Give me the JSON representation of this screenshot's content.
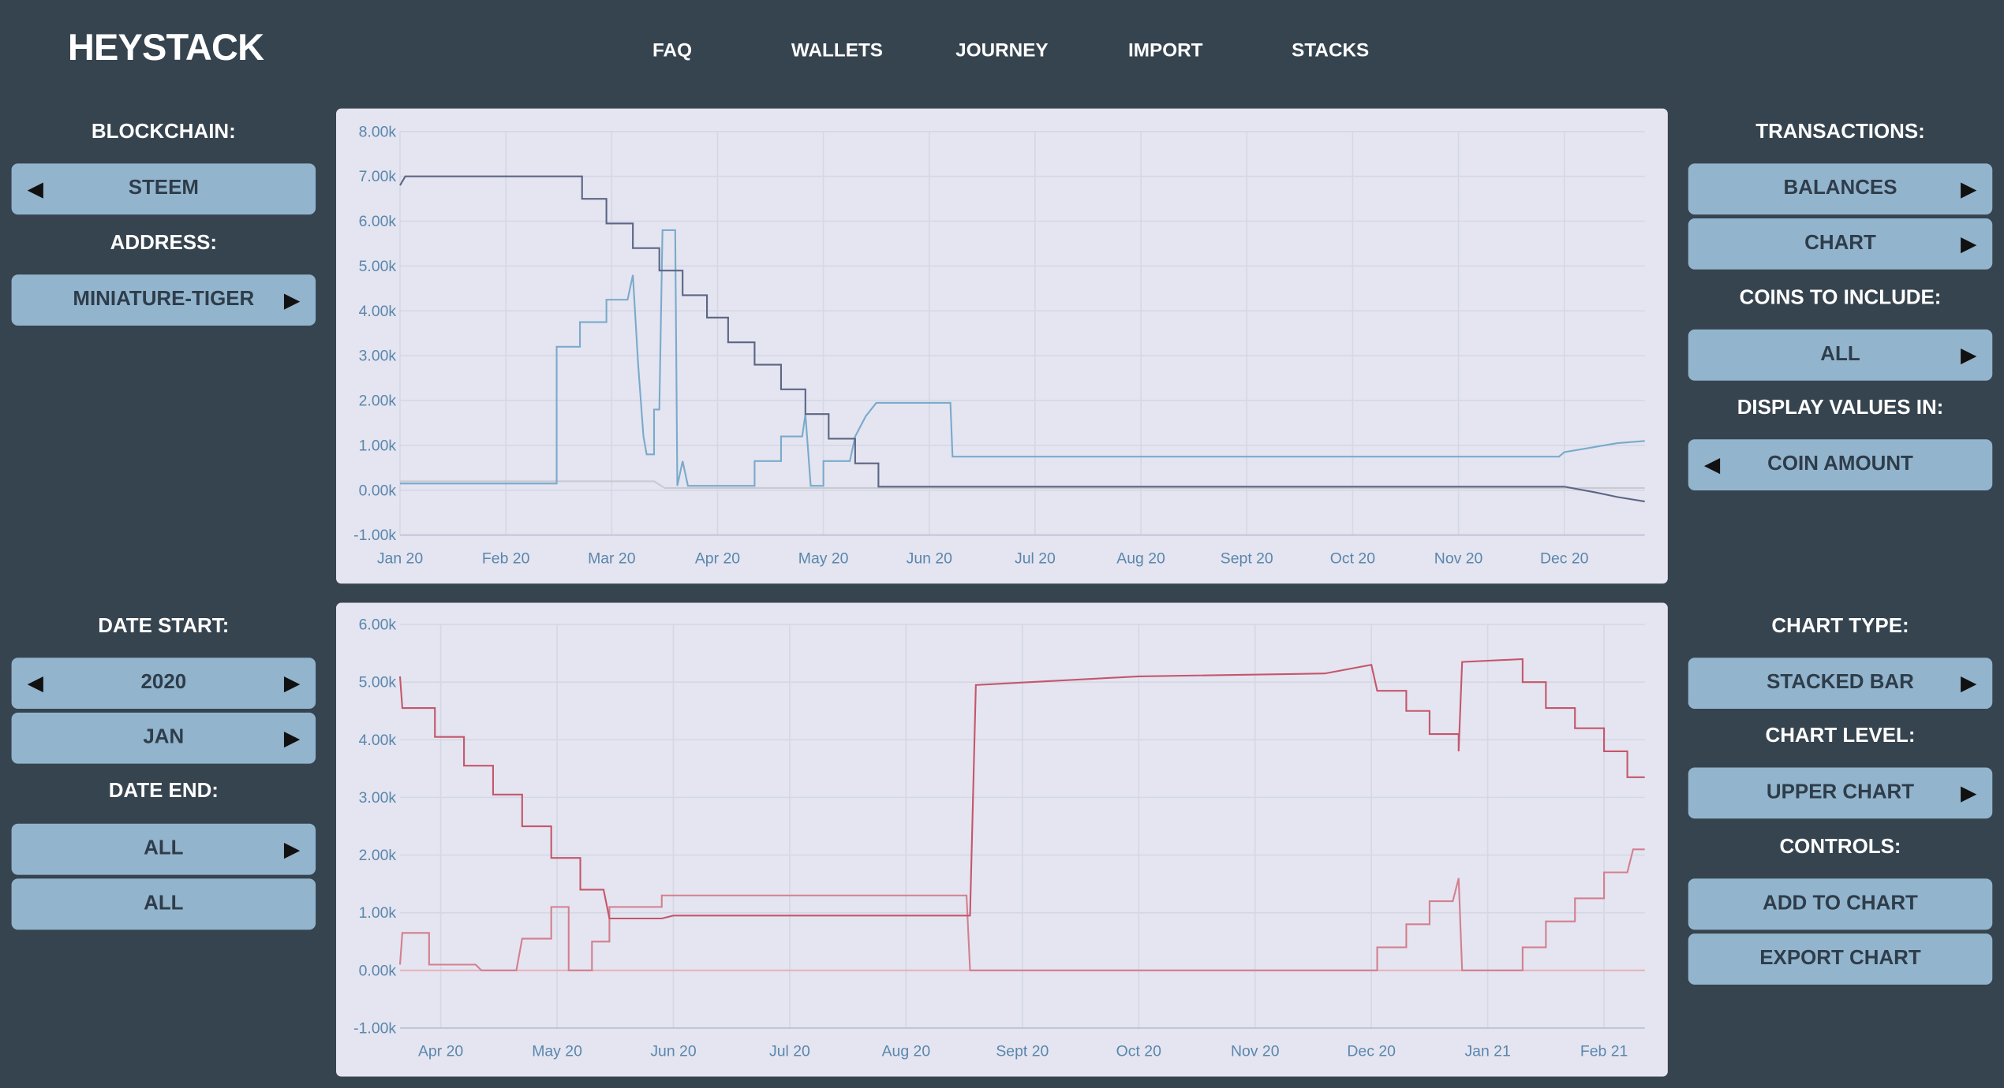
{
  "header": {
    "logo": "HEYSTACK",
    "nav": [
      "FAQ",
      "WALLETS",
      "JOURNEY",
      "IMPORT",
      "STACKS"
    ]
  },
  "left_panel": [
    {
      "label": "BLOCKCHAIN:"
    },
    {
      "button": "STEEM",
      "arrow": "left"
    },
    {
      "label": "ADDRESS:"
    },
    {
      "button": "MINIATURE-TIGER",
      "arrow": "right"
    },
    {
      "label": "DATE START:"
    },
    {
      "button": "2020",
      "arrow": "both"
    },
    {
      "button": "JAN",
      "arrow": "right"
    },
    {
      "label": "DATE END:"
    },
    {
      "button": "ALL",
      "arrow": "right"
    },
    {
      "button": "ALL",
      "arrow": "none"
    }
  ],
  "right_panel": [
    {
      "label": "TRANSACTIONS:"
    },
    {
      "button": "BALANCES",
      "arrow": "right"
    },
    {
      "button": "CHART",
      "arrow": "right"
    },
    {
      "label": "COINS TO INCLUDE:"
    },
    {
      "button": "ALL",
      "arrow": "right"
    },
    {
      "label": "DISPLAY VALUES IN:"
    },
    {
      "button": "COIN AMOUNT",
      "arrow": "left"
    },
    {
      "label": "CHART TYPE:"
    },
    {
      "button": "STACKED BAR",
      "arrow": "right"
    },
    {
      "label": "CHART LEVEL:"
    },
    {
      "button": "UPPER CHART",
      "arrow": "right"
    },
    {
      "label": "CONTROLS:"
    },
    {
      "button": "ADD TO CHART",
      "arrow": "none"
    },
    {
      "button": "EXPORT CHART",
      "arrow": "none"
    }
  ],
  "chart_data": [
    {
      "type": "line",
      "grid": true,
      "xlim": [
        0,
        11.76
      ],
      "xticks": [
        {
          "value": 0,
          "label": "Jan 20"
        },
        {
          "value": 1,
          "label": "Feb 20"
        },
        {
          "value": 2,
          "label": "Mar 20"
        },
        {
          "value": 3,
          "label": "Apr 20"
        },
        {
          "value": 4,
          "label": "May 20"
        },
        {
          "value": 5,
          "label": "Jun 20"
        },
        {
          "value": 6,
          "label": "Jul 20"
        },
        {
          "value": 7,
          "label": "Aug 20"
        },
        {
          "value": 8,
          "label": "Sept 20"
        },
        {
          "value": 9,
          "label": "Oct 20"
        },
        {
          "value": 10,
          "label": "Nov 20"
        },
        {
          "value": 11,
          "label": "Dec 20"
        }
      ],
      "ylim": [
        -1000,
        8000
      ],
      "yticks": [
        {
          "value": -1000,
          "label": "-1.00k"
        },
        {
          "value": 0,
          "label": "0.00k"
        },
        {
          "value": 1000,
          "label": "1.00k"
        },
        {
          "value": 2000,
          "label": "2.00k"
        },
        {
          "value": 3000,
          "label": "3.00k"
        },
        {
          "value": 4000,
          "label": "4.00k"
        },
        {
          "value": 5000,
          "label": "5.00k"
        },
        {
          "value": 6000,
          "label": "6.00k"
        },
        {
          "value": 7000,
          "label": "7.00k"
        },
        {
          "value": 8000,
          "label": "8.00k"
        }
      ],
      "series": [
        {
          "color": "#c9c9d2",
          "x": [
            0,
            2.4,
            2.5,
            11.76
          ],
          "values": [
            200,
            200,
            50,
            50
          ]
        },
        {
          "color": "#7aaacb",
          "x": [
            0,
            1.48,
            1.48,
            1.7,
            1.7,
            1.95,
            1.95,
            2.15,
            2.2,
            2.25,
            2.3,
            2.33,
            2.4,
            2.4,
            2.45,
            2.48,
            2.6,
            2.62,
            2.67,
            2.72,
            3.35,
            3.35,
            3.6,
            3.6,
            3.8,
            3.83,
            3.88,
            4.0,
            4.0,
            4.25,
            4.3,
            4.4,
            4.5,
            5.2,
            5.22,
            10.95,
            11.0,
            11.25,
            11.5,
            11.76
          ],
          "values": [
            150,
            150,
            3200,
            3200,
            3750,
            3750,
            4250,
            4250,
            4800,
            2800,
            1200,
            800,
            800,
            1800,
            1800,
            5800,
            5800,
            100,
            650,
            100,
            100,
            650,
            650,
            1200,
            1200,
            1700,
            100,
            100,
            650,
            650,
            1200,
            1650,
            1950,
            1950,
            750,
            750,
            850,
            950,
            1050,
            1100
          ]
        },
        {
          "color": "#5c6585",
          "x": [
            0,
            0.05,
            1.72,
            1.72,
            1.95,
            1.95,
            2.2,
            2.2,
            2.45,
            2.45,
            2.67,
            2.67,
            2.9,
            2.9,
            3.1,
            3.1,
            3.35,
            3.35,
            3.6,
            3.6,
            3.83,
            3.83,
            4.05,
            4.05,
            4.3,
            4.3,
            4.52,
            4.52,
            11.0,
            11.3,
            11.5,
            11.76
          ],
          "values": [
            6800,
            7000,
            7000,
            6500,
            6500,
            5950,
            5950,
            5400,
            5400,
            4900,
            4900,
            4350,
            4350,
            3850,
            3850,
            3300,
            3300,
            2800,
            2800,
            2250,
            2250,
            1700,
            1700,
            1150,
            1150,
            600,
            600,
            80,
            80,
            -50,
            -150,
            -250
          ]
        }
      ]
    },
    {
      "type": "line",
      "grid": true,
      "xlim": [
        -0.35,
        10.35
      ],
      "xticks": [
        {
          "value": 0,
          "label": "Apr 20"
        },
        {
          "value": 1,
          "label": "May 20"
        },
        {
          "value": 2,
          "label": "Jun 20"
        },
        {
          "value": 3,
          "label": "Jul 20"
        },
        {
          "value": 4,
          "label": "Aug 20"
        },
        {
          "value": 5,
          "label": "Sept 20"
        },
        {
          "value": 6,
          "label": "Oct 20"
        },
        {
          "value": 7,
          "label": "Nov 20"
        },
        {
          "value": 8,
          "label": "Dec 20"
        },
        {
          "value": 9,
          "label": "Jan 21"
        },
        {
          "value": 10,
          "label": "Feb 21"
        }
      ],
      "ylim": [
        -1000,
        6000
      ],
      "yticks": [
        {
          "value": -1000,
          "label": "-1.00k"
        },
        {
          "value": 0,
          "label": "0.00k"
        },
        {
          "value": 1000,
          "label": "1.00k"
        },
        {
          "value": 2000,
          "label": "2.00k"
        },
        {
          "value": 3000,
          "label": "3.00k"
        },
        {
          "value": 4000,
          "label": "4.00k"
        },
        {
          "value": 5000,
          "label": "5.00k"
        },
        {
          "value": 6000,
          "label": "6.00k"
        }
      ],
      "series": [
        {
          "color": "#e6b3bd",
          "x": [
            -0.35,
            10.35
          ],
          "values": [
            0,
            0
          ]
        },
        {
          "color": "#d47f8f",
          "x": [
            -0.35,
            -0.33,
            -0.1,
            -0.1,
            0.3,
            0.35,
            0.65,
            0.7,
            0.95,
            0.95,
            1.1,
            1.1,
            1.3,
            1.3,
            1.45,
            1.45,
            1.9,
            1.9,
            4.52,
            4.55,
            8.05,
            8.05,
            8.3,
            8.3,
            8.5,
            8.5,
            8.7,
            8.75,
            8.78,
            9.3,
            9.3,
            9.5,
            9.5,
            9.75,
            9.75,
            10.0,
            10.0,
            10.2,
            10.25,
            10.35
          ],
          "values": [
            100,
            650,
            650,
            100,
            100,
            0,
            0,
            550,
            550,
            1100,
            1100,
            0,
            0,
            500,
            500,
            1100,
            1100,
            1300,
            1300,
            0,
            0,
            400,
            400,
            800,
            800,
            1200,
            1200,
            1600,
            0,
            0,
            400,
            400,
            850,
            850,
            1250,
            1250,
            1700,
            1700,
            2100,
            2100
          ]
        },
        {
          "color": "#c5566c",
          "x": [
            -0.35,
            -0.33,
            -0.05,
            -0.05,
            0.2,
            0.2,
            0.45,
            0.45,
            0.7,
            0.7,
            0.95,
            0.95,
            1.2,
            1.2,
            1.4,
            1.45,
            1.9,
            2.0,
            4.55,
            4.6,
            6.0,
            7.6,
            8.0,
            8.05,
            8.3,
            8.3,
            8.5,
            8.5,
            8.75,
            8.75,
            8.78,
            9.3,
            9.3,
            9.5,
            9.5,
            9.75,
            9.75,
            10.0,
            10.0,
            10.2,
            10.2,
            10.35
          ],
          "values": [
            5100,
            4550,
            4550,
            4050,
            4050,
            3550,
            3550,
            3050,
            3050,
            2500,
            2500,
            1950,
            1950,
            1400,
            1400,
            900,
            900,
            950,
            950,
            4950,
            5100,
            5150,
            5300,
            4850,
            4850,
            4500,
            4500,
            4100,
            4100,
            3800,
            5350,
            5400,
            5000,
            5000,
            4550,
            4550,
            4200,
            4200,
            3800,
            3800,
            3350,
            3350
          ]
        }
      ]
    }
  ]
}
